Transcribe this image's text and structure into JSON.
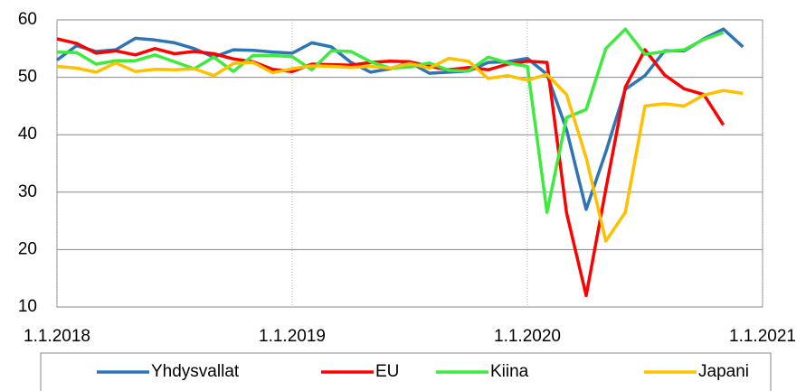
{
  "chart_data": {
    "type": "line",
    "x": [
      "1.1.2018",
      "1.2.2018",
      "1.3.2018",
      "1.4.2018",
      "1.5.2018",
      "1.6.2018",
      "1.7.2018",
      "1.8.2018",
      "1.9.2018",
      "1.10.2018",
      "1.11.2018",
      "1.12.2018",
      "1.1.2019",
      "1.2.2019",
      "1.3.2019",
      "1.4.2019",
      "1.5.2019",
      "1.6.2019",
      "1.7.2019",
      "1.8.2019",
      "1.9.2019",
      "1.10.2019",
      "1.11.2019",
      "1.12.2019",
      "1.1.2020",
      "1.2.2020",
      "1.3.2020",
      "1.4.2020",
      "1.5.2020",
      "1.6.2020",
      "1.7.2020",
      "1.8.2020",
      "1.9.2020",
      "1.10.2020",
      "1.11.2020",
      "1.12.2020"
    ],
    "xlim": [
      "1.1.2018",
      "1.1.2021"
    ],
    "xticks": [
      "1.1.2018",
      "1.1.2019",
      "1.1.2020",
      "1.1.2021"
    ],
    "ylim": [
      10,
      60
    ],
    "yticks": [
      10,
      20,
      30,
      40,
      50,
      60
    ],
    "grid": true,
    "legend": "bottom",
    "series": [
      {
        "name": "Yhdysvallat",
        "color": "#2E75B6",
        "values": [
          53.0,
          55.5,
          54.5,
          54.8,
          56.8,
          56.5,
          56.0,
          55.0,
          53.5,
          54.8,
          54.7,
          54.4,
          54.2,
          56.0,
          55.3,
          52.6,
          50.9,
          51.5,
          52.6,
          50.7,
          50.9,
          51.1,
          52.6,
          52.7,
          53.3,
          50.5,
          40.9,
          27.0,
          37.0,
          47.9,
          50.3,
          54.6,
          54.6,
          56.7,
          58.4,
          55.3
        ]
      },
      {
        "name": "EU",
        "color": "#FF0000",
        "values": [
          56.7,
          55.9,
          54.2,
          54.6,
          53.9,
          55.0,
          54.1,
          54.5,
          54.1,
          53.2,
          52.7,
          51.4,
          51.0,
          52.3,
          52.2,
          52.1,
          52.6,
          52.8,
          52.7,
          51.9,
          51.3,
          51.7,
          51.3,
          52.3,
          52.8,
          52.6,
          26.4,
          12.0,
          30.5,
          48.3,
          54.8,
          50.4,
          48.0,
          47.0,
          41.7,
          null
        ]
      },
      {
        "name": "Kiina",
        "color": "#3DEB3D",
        "values": [
          54.4,
          54.3,
          52.3,
          52.9,
          52.9,
          53.9,
          52.7,
          51.5,
          53.5,
          51.0,
          53.8,
          53.8,
          53.6,
          51.3,
          54.6,
          54.5,
          52.7,
          51.6,
          51.8,
          52.5,
          51.2,
          51.1,
          53.5,
          52.5,
          51.9,
          26.5,
          43.0,
          44.4,
          55.0,
          58.4,
          54.0,
          54.5,
          54.8,
          56.6,
          57.8,
          null
        ]
      },
      {
        "name": "Japani",
        "color": "#FFC000",
        "values": [
          51.9,
          51.6,
          50.9,
          52.5,
          51.0,
          51.4,
          51.3,
          51.5,
          50.3,
          52.4,
          52.6,
          50.8,
          51.5,
          52.0,
          51.9,
          51.7,
          51.9,
          51.6,
          52.4,
          51.6,
          53.3,
          52.8,
          49.8,
          50.3,
          49.5,
          50.5,
          47.0,
          36.0,
          21.5,
          26.5,
          45.0,
          45.4,
          45.0,
          46.9,
          47.7,
          47.2
        ]
      }
    ]
  }
}
